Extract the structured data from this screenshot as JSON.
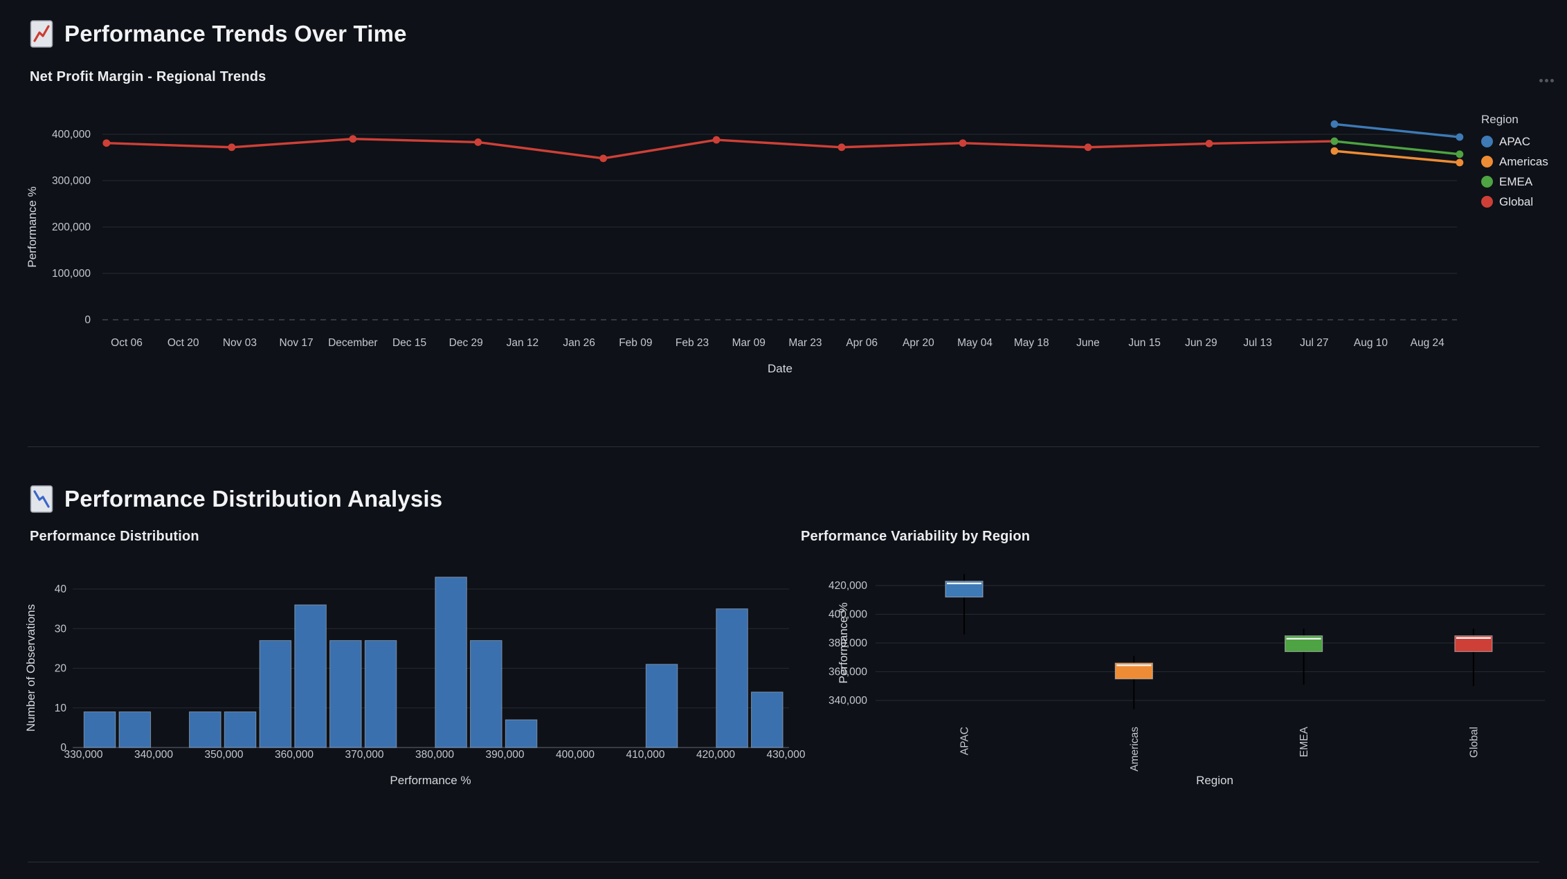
{
  "section1": {
    "icon": "chart-increasing-icon",
    "title": "Performance Trends Over Time",
    "chart_title": "Net Profit Margin - Regional Trends",
    "menu_icon": "ellipsis-menu"
  },
  "section2": {
    "icon": "chart-decreasing-icon",
    "title": "Performance Distribution Analysis",
    "left_chart_title": "Performance Distribution",
    "right_chart_title": "Performance Variability by Region"
  },
  "colors": {
    "apac_blue": "#3d7ab6",
    "americas_orange": "#ee8c35",
    "emea_green": "#4ea342",
    "global_red": "#ce4037",
    "histogram_bar": "#3b70ae",
    "background": "#0e1117"
  },
  "chart_data": [
    {
      "id": "trend",
      "type": "line",
      "title": "Net Profit Margin - Regional Trends",
      "xlabel": "Date",
      "ylabel": "Performance %",
      "legend_title": "Region",
      "ylim": [
        0,
        440000
      ],
      "grid": true,
      "legend_position": "right",
      "y_ticks": [
        0,
        100000,
        200000,
        300000,
        400000
      ],
      "x_ticks": [
        {
          "label": "Oct 06",
          "day": 0
        },
        {
          "label": "Oct 20",
          "day": 14
        },
        {
          "label": "Nov 03",
          "day": 28
        },
        {
          "label": "Nov 17",
          "day": 42
        },
        {
          "label": "December",
          "day": 56
        },
        {
          "label": "Dec 15",
          "day": 70
        },
        {
          "label": "Dec 29",
          "day": 84
        },
        {
          "label": "Jan 12",
          "day": 98
        },
        {
          "label": "Jan 26",
          "day": 112
        },
        {
          "label": "Feb 09",
          "day": 126
        },
        {
          "label": "Feb 23",
          "day": 140
        },
        {
          "label": "Mar 09",
          "day": 154
        },
        {
          "label": "Mar 23",
          "day": 168
        },
        {
          "label": "Apr 06",
          "day": 182
        },
        {
          "label": "Apr 20",
          "day": 196
        },
        {
          "label": "May 04",
          "day": 210
        },
        {
          "label": "May 18",
          "day": 224
        },
        {
          "label": "June",
          "day": 238
        },
        {
          "label": "Jun 15",
          "day": 252
        },
        {
          "label": "Jun 29",
          "day": 266
        },
        {
          "label": "Jul 13",
          "day": 280
        },
        {
          "label": "Jul 27",
          "day": 294
        },
        {
          "label": "Aug 10",
          "day": 308
        },
        {
          "label": "Aug 24",
          "day": 322
        }
      ],
      "legend": [
        {
          "name": "APAC",
          "color": "#3d7ab6"
        },
        {
          "name": "Americas",
          "color": "#ee8c35"
        },
        {
          "name": "EMEA",
          "color": "#4ea342"
        },
        {
          "name": "Global",
          "color": "#ce4037"
        }
      ],
      "series": [
        {
          "name": "Global",
          "color": "#ce4037",
          "points": [
            {
              "date": "Oct 01",
              "day": -5,
              "value": 381000
            },
            {
              "date": "Nov 01",
              "day": 26,
              "value": 372000
            },
            {
              "date": "Dec 01",
              "day": 56,
              "value": 390000
            },
            {
              "date": "Jan 01",
              "day": 87,
              "value": 383000
            },
            {
              "date": "Feb 01",
              "day": 118,
              "value": 348000
            },
            {
              "date": "Mar 01",
              "day": 146,
              "value": 388000
            },
            {
              "date": "Apr 01",
              "day": 177,
              "value": 372000
            },
            {
              "date": "May 01",
              "day": 207,
              "value": 381000
            },
            {
              "date": "Jun 01",
              "day": 238,
              "value": 372000
            },
            {
              "date": "Jul 01",
              "day": 268,
              "value": 380000
            },
            {
              "date": "Aug 01",
              "day": 299,
              "value": 385000
            }
          ]
        },
        {
          "name": "APAC",
          "color": "#3d7ab6",
          "points": [
            {
              "date": "Aug 01",
              "day": 299,
              "value": 422000
            },
            {
              "date": "Sep 01",
              "day": 330,
              "value": 394000
            }
          ]
        },
        {
          "name": "EMEA",
          "color": "#4ea342",
          "points": [
            {
              "date": "Aug 01",
              "day": 299,
              "value": 385000
            },
            {
              "date": "Sep 01",
              "day": 330,
              "value": 357000
            }
          ]
        },
        {
          "name": "Americas",
          "color": "#ee8c35",
          "points": [
            {
              "date": "Aug 01",
              "day": 299,
              "value": 364000
            },
            {
              "date": "Sep 01",
              "day": 330,
              "value": 339000
            }
          ]
        }
      ]
    },
    {
      "id": "histogram",
      "type": "bar",
      "title": "Performance Distribution",
      "xlabel": "Performance %",
      "ylabel": "Number of Observations",
      "ylim": [
        0,
        44
      ],
      "bin_width": 5000,
      "bar_color": "#3b70ae",
      "y_ticks": [
        0,
        10,
        20,
        30,
        40
      ],
      "x_ticks": [
        330000,
        340000,
        350000,
        360000,
        370000,
        380000,
        390000,
        400000,
        410000,
        420000,
        430000
      ],
      "bins": [
        {
          "start": 330000,
          "count": 9
        },
        {
          "start": 335000,
          "count": 9
        },
        {
          "start": 345000,
          "count": 9
        },
        {
          "start": 350000,
          "count": 9
        },
        {
          "start": 355000,
          "count": 27
        },
        {
          "start": 360000,
          "count": 36
        },
        {
          "start": 365000,
          "count": 27
        },
        {
          "start": 370000,
          "count": 27
        },
        {
          "start": 380000,
          "count": 43
        },
        {
          "start": 385000,
          "count": 27
        },
        {
          "start": 390000,
          "count": 7
        },
        {
          "start": 410000,
          "count": 21
        },
        {
          "start": 420000,
          "count": 35
        },
        {
          "start": 425000,
          "count": 14
        }
      ]
    },
    {
      "id": "boxplot",
      "type": "boxplot",
      "title": "Performance Variability by Region",
      "xlabel": "Region",
      "ylabel": "Performance %",
      "y_ticks": [
        420000,
        400000,
        380000,
        360000,
        340000
      ],
      "categories": [
        "APAC",
        "Americas",
        "EMEA",
        "Global"
      ],
      "boxes": [
        {
          "region": "APAC",
          "color": "#3d7ab6",
          "whisker_low": 386000,
          "q1": 412000,
          "median": 421500,
          "q3": 423000,
          "whisker_high": 428000
        },
        {
          "region": "Americas",
          "color": "#ee8c35",
          "whisker_low": 334000,
          "q1": 355000,
          "median": 364500,
          "q3": 366000,
          "whisker_high": 371000
        },
        {
          "region": "EMEA",
          "color": "#4ea342",
          "whisker_low": 351000,
          "q1": 374000,
          "median": 383000,
          "q3": 385000,
          "whisker_high": 390000
        },
        {
          "region": "Global",
          "color": "#ce4037",
          "whisker_low": 350000,
          "q1": 374000,
          "median": 383500,
          "q3": 385000,
          "whisker_high": 390000
        }
      ]
    }
  ]
}
